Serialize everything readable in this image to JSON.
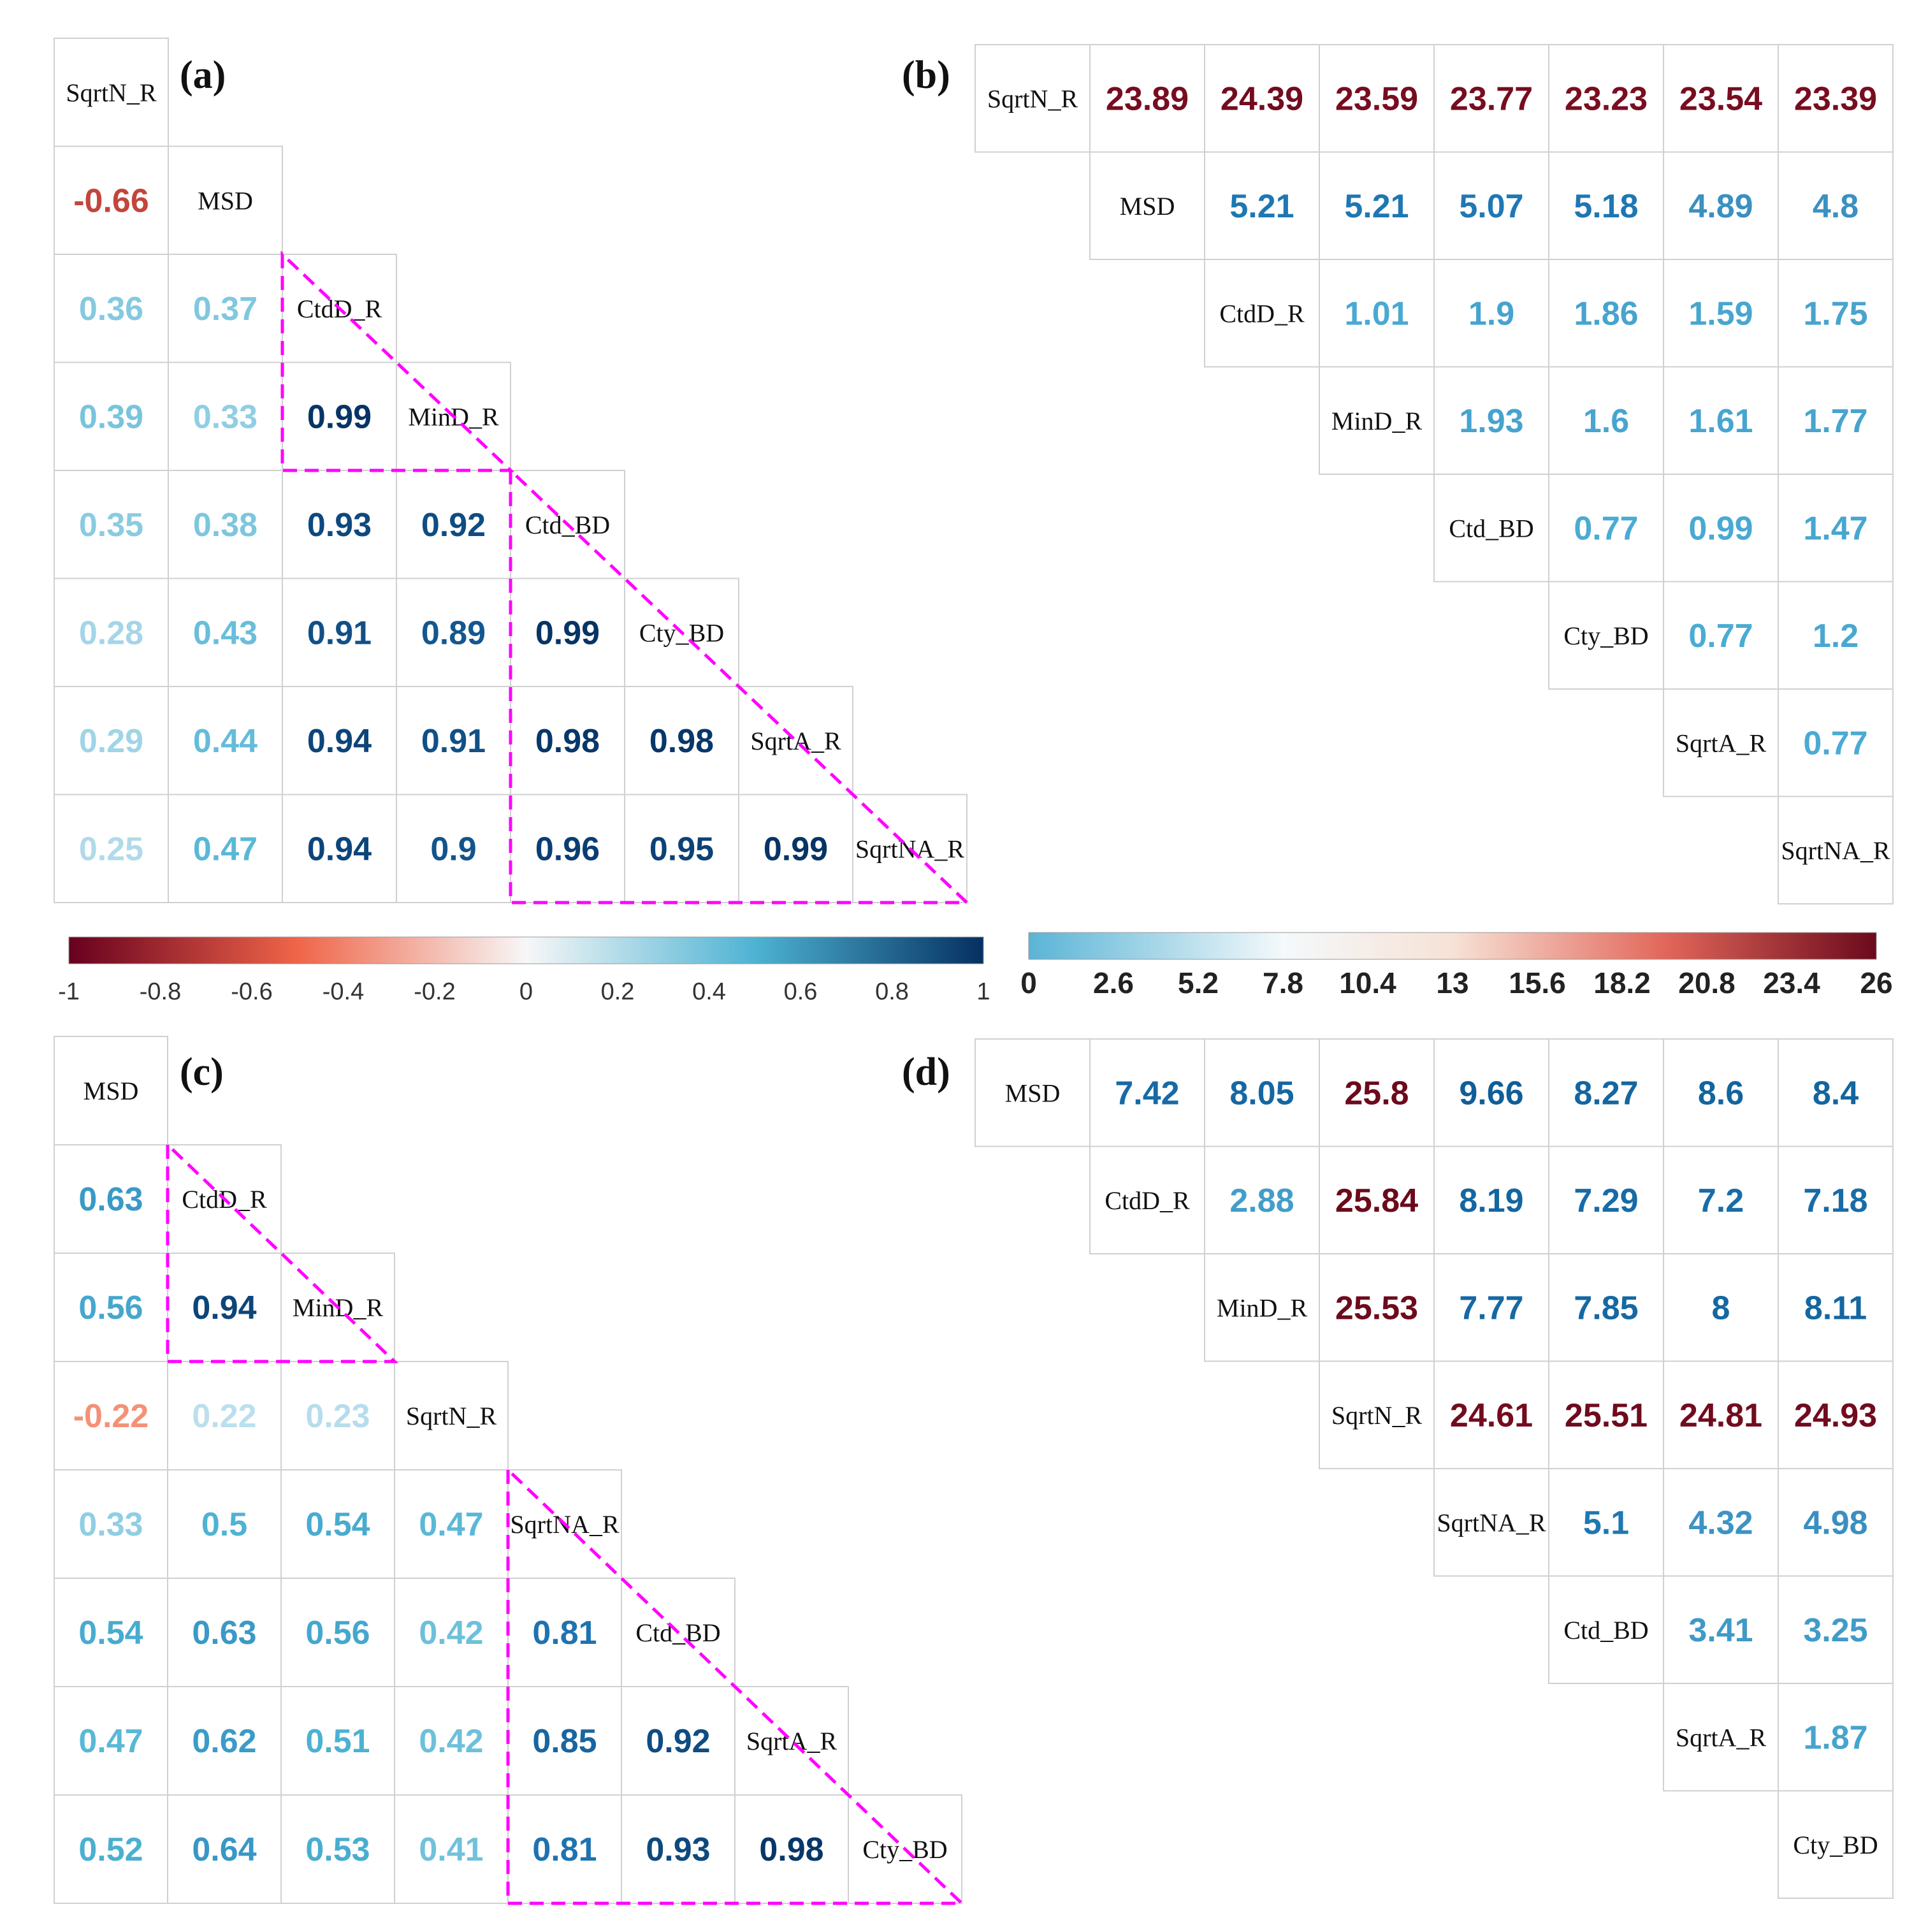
{
  "chart_data": [
    {
      "panel": "(a)",
      "type": "heatmap",
      "shape": "lower-triangle",
      "variables": [
        "SqrtN_R",
        "MSD",
        "CtdD_R",
        "MinD_R",
        "Ctd_BD",
        "Cty_BD",
        "SqrtA_R",
        "SqrtNA_R"
      ],
      "rows": [
        [],
        [
          "-0.66"
        ],
        [
          "0.36",
          "0.37"
        ],
        [
          "0.39",
          "0.33",
          "0.99"
        ],
        [
          "0.35",
          "0.38",
          "0.93",
          "0.92"
        ],
        [
          "0.28",
          "0.43",
          "0.91",
          "0.89",
          "0.99"
        ],
        [
          "0.29",
          "0.44",
          "0.94",
          "0.91",
          "0.98",
          "0.98"
        ],
        [
          "0.25",
          "0.47",
          "0.94",
          "0.9",
          "0.96",
          "0.95",
          "0.99"
        ]
      ],
      "color_scale": {
        "min": -1,
        "max": 1,
        "palette": "red-white-blue"
      },
      "highlight_groups": [
        [
          "CtdD_R",
          "MinD_R"
        ],
        [
          "Ctd_BD",
          "Cty_BD",
          "SqrtA_R",
          "SqrtNA_R"
        ]
      ]
    },
    {
      "panel": "(b)",
      "type": "heatmap",
      "shape": "upper-triangle",
      "variables": [
        "SqrtN_R",
        "MSD",
        "CtdD_R",
        "MinD_R",
        "Ctd_BD",
        "Cty_BD",
        "SqrtA_R",
        "SqrtNA_R"
      ],
      "rows": [
        [
          "23.89",
          "24.39",
          "23.59",
          "23.77",
          "23.23",
          "23.54",
          "23.39"
        ],
        [
          "5.21",
          "5.21",
          "5.07",
          "5.18",
          "4.89",
          "4.8"
        ],
        [
          "1.01",
          "1.9",
          "1.86",
          "1.59",
          "1.75"
        ],
        [
          "1.93",
          "1.6",
          "1.61",
          "1.77"
        ],
        [
          "0.77",
          "0.99",
          "1.47"
        ],
        [
          "0.77",
          "1.2"
        ],
        [
          "0.77"
        ],
        []
      ],
      "color_scale": {
        "min": 0,
        "max": 26,
        "palette": "blue-white-red"
      }
    },
    {
      "panel": "(c)",
      "type": "heatmap",
      "shape": "lower-triangle",
      "variables": [
        "MSD",
        "CtdD_R",
        "MinD_R",
        "SqrtN_R",
        "SqrtNA_R",
        "Ctd_BD",
        "SqrtA_R",
        "Cty_BD"
      ],
      "rows": [
        [],
        [
          "0.63"
        ],
        [
          "0.56",
          "0.94"
        ],
        [
          "-0.22",
          "0.22",
          "0.23"
        ],
        [
          "0.33",
          "0.5",
          "0.54",
          "0.47"
        ],
        [
          "0.54",
          "0.63",
          "0.56",
          "0.42",
          "0.81"
        ],
        [
          "0.47",
          "0.62",
          "0.51",
          "0.42",
          "0.85",
          "0.92"
        ],
        [
          "0.52",
          "0.64",
          "0.53",
          "0.41",
          "0.81",
          "0.93",
          "0.98"
        ]
      ],
      "color_scale": {
        "min": -1,
        "max": 1,
        "palette": "red-white-blue"
      },
      "highlight_groups": [
        [
          "CtdD_R",
          "MinD_R"
        ],
        [
          "SqrtNA_R",
          "Ctd_BD",
          "SqrtA_R",
          "Cty_BD"
        ]
      ]
    },
    {
      "panel": "(d)",
      "type": "heatmap",
      "shape": "upper-triangle",
      "variables": [
        "MSD",
        "CtdD_R",
        "MinD_R",
        "SqrtN_R",
        "SqrtNA_R",
        "Ctd_BD",
        "SqrtA_R",
        "Cty_BD"
      ],
      "rows": [
        [
          "7.42",
          "8.05",
          "25.8",
          "9.66",
          "8.27",
          "8.6",
          "8.4"
        ],
        [
          "2.88",
          "25.84",
          "8.19",
          "7.29",
          "7.2",
          "7.18"
        ],
        [
          "25.53",
          "7.77",
          "7.85",
          "8",
          "8.11"
        ],
        [
          "24.61",
          "25.51",
          "24.81",
          "24.93"
        ],
        [
          "5.1",
          "4.32",
          "4.98"
        ],
        [
          "3.41",
          "3.25"
        ],
        [
          "1.87"
        ],
        []
      ],
      "color_scale": {
        "min": 0,
        "max": 26,
        "palette": "blue-white-red"
      }
    }
  ],
  "colorbars": {
    "correlation": {
      "ticks": [
        "-1",
        "-0.8",
        "-0.6",
        "-0.4",
        "-0.2",
        "0",
        "0.2",
        "0.4",
        "0.6",
        "0.8",
        "1"
      ],
      "min": -1,
      "max": 1
    },
    "distance": {
      "ticks": [
        "0",
        "2.6",
        "5.2",
        "7.8",
        "10.4",
        "13",
        "15.6",
        "18.2",
        "20.8",
        "23.4",
        "26"
      ],
      "min": 0,
      "max": 26
    }
  },
  "colors": {
    "neg_end": "#67001f",
    "neg_mid": "#ef6548",
    "neutral": "#f7f7f7",
    "pos_mid": "#4eb3d3",
    "pos_end": "#053061",
    "dist_low": "#5ab4d6",
    "dist_high": "#6b0a1c",
    "highlight": "#ff00ff"
  }
}
